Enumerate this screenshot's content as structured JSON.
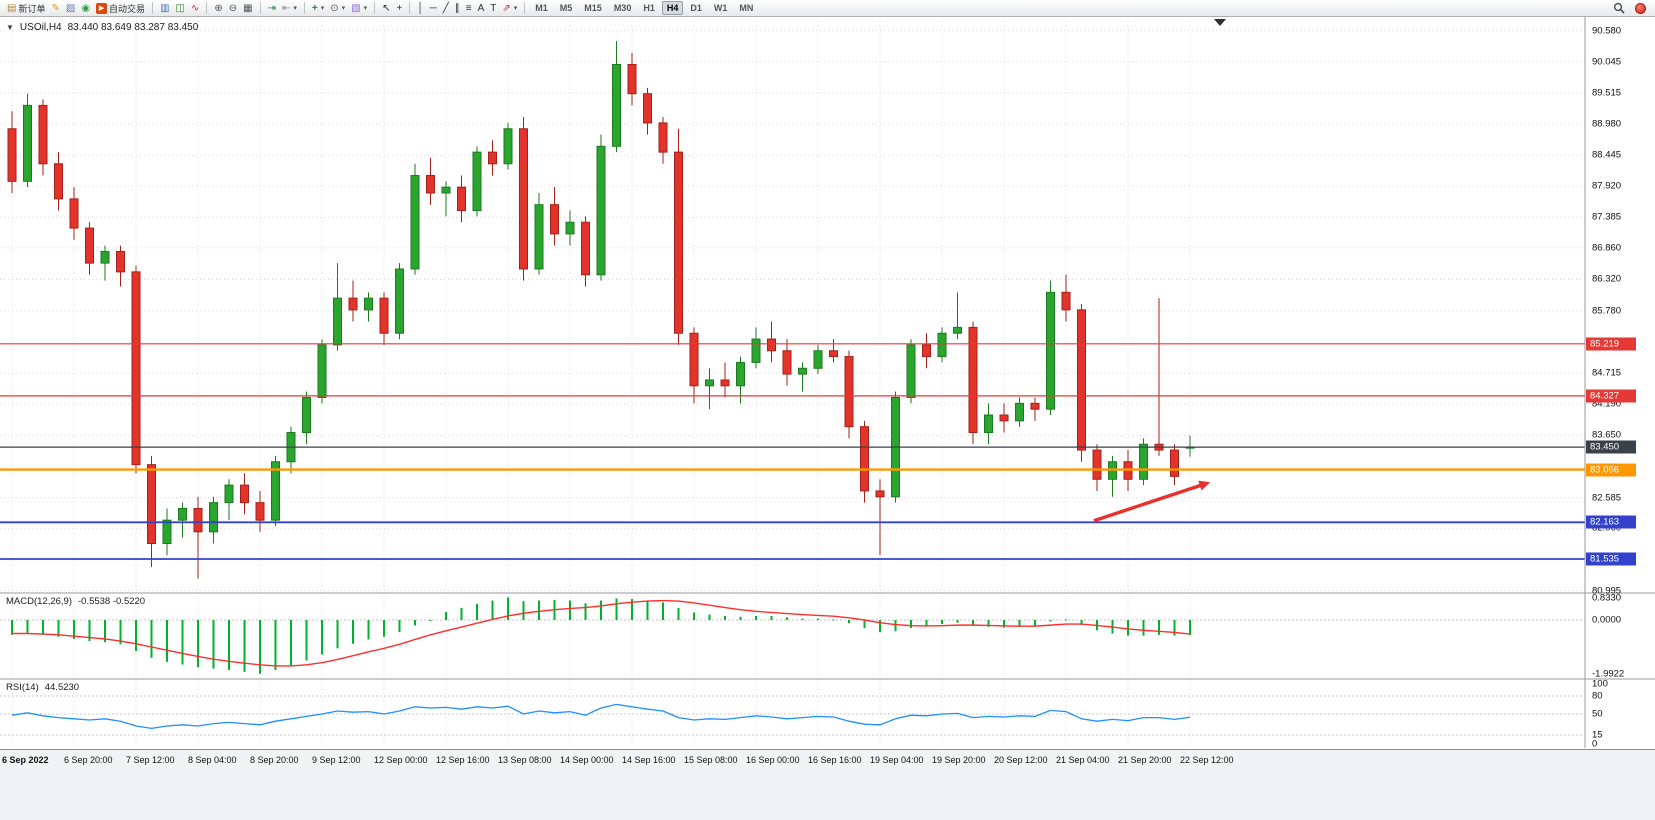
{
  "toolbar": {
    "groups": [
      {
        "items": [
          {
            "name": "new-order-button",
            "icon": "new-order-icon",
            "label": "新订单"
          },
          {
            "name": "metaeditor-button",
            "icon": "metaeditor-icon"
          },
          {
            "name": "print-button",
            "icon": "print-icon"
          },
          {
            "name": "community-button",
            "icon": "community-icon"
          },
          {
            "name": "auto-trading-button",
            "icon": "auto-trading-icon",
            "label": "自动交易"
          }
        ]
      },
      {
        "items": [
          {
            "name": "bars-button",
            "icon": "bars-icon"
          },
          {
            "name": "candlesticks-button",
            "icon": "candlesticks-icon"
          },
          {
            "name": "line-chart-button",
            "icon": "line-chart-icon"
          }
        ]
      },
      {
        "items": [
          {
            "name": "zoom-in-button",
            "icon": "zoom-in-icon"
          },
          {
            "name": "zoom-out-button",
            "icon": "zoom-out-icon"
          },
          {
            "name": "tile-windows-button",
            "icon": "tile-windows-icon"
          }
        ]
      },
      {
        "items": [
          {
            "name": "auto-scroll-button",
            "icon": "auto-scroll-icon"
          },
          {
            "name": "chart-shift-button",
            "icon": "chart-shift-icon",
            "caret": true
          }
        ]
      },
      {
        "items": [
          {
            "name": "indicators-button",
            "icon": "indicators-icon",
            "caret": true
          },
          {
            "name": "periods-button",
            "icon": "periods-icon",
            "caret": true
          },
          {
            "name": "templates-button",
            "icon": "templates-icon",
            "caret": true
          }
        ]
      },
      {
        "items": [
          {
            "name": "cursor-button",
            "icon": "cursor-icon"
          },
          {
            "name": "crosshair-button",
            "icon": "crosshair-icon"
          }
        ]
      },
      {
        "items": [
          {
            "name": "vertical-line-button",
            "icon": "vertical-line-icon"
          },
          {
            "name": "horizontal-line-button",
            "icon": "horizontal-line-icon"
          },
          {
            "name": "trendline-button",
            "icon": "trendline-icon"
          },
          {
            "name": "equidistant-channel-button",
            "icon": "equidistant-channel-icon"
          },
          {
            "name": "fibonacci-button",
            "icon": "fibonacci-icon"
          },
          {
            "name": "text-button",
            "icon": "text-icon"
          },
          {
            "name": "text-label-button",
            "icon": "text-label-icon"
          },
          {
            "name": "arrows-button",
            "icon": "arrows-icon",
            "caret": true
          }
        ]
      },
      {
        "type": "timeframes"
      }
    ],
    "timeframes": [
      "M1",
      "M5",
      "M15",
      "M30",
      "H1",
      "H4",
      "D1",
      "W1",
      "MN"
    ],
    "active_timeframe": "H4"
  },
  "chart": {
    "title": "USOil,H4",
    "ohlc": "83.440 83.649 83.287 83.450"
  },
  "chart_data": {
    "type": "candlestick",
    "symbol": "USOil",
    "timeframe": "H4",
    "current_bar": {
      "open": 83.44,
      "high": 83.649,
      "low": 83.287,
      "close": 83.45
    },
    "y_range": [
      80.94,
      90.83
    ],
    "price_axis": {
      "visible_ticks": [
        "90.580",
        "90.045",
        "89.515",
        "88.980",
        "88.445",
        "87.920",
        "87.385",
        "86.860",
        "86.320",
        "85.780",
        "84.715",
        "84.190",
        "83.650",
        "82.585",
        "82.060",
        "80.995"
      ]
    },
    "candles": [
      [
        88.9,
        89.2,
        87.8,
        88.0
      ],
      [
        88.0,
        89.5,
        87.9,
        89.3
      ],
      [
        89.3,
        89.4,
        88.1,
        88.3
      ],
      [
        88.3,
        88.5,
        87.5,
        87.7
      ],
      [
        87.7,
        87.9,
        87.0,
        87.2
      ],
      [
        87.2,
        87.3,
        86.4,
        86.6
      ],
      [
        86.6,
        86.9,
        86.3,
        86.8
      ],
      [
        86.8,
        86.9,
        86.2,
        86.45
      ],
      [
        86.45,
        86.55,
        83.0,
        83.15
      ],
      [
        83.15,
        83.3,
        81.4,
        81.8
      ],
      [
        81.8,
        82.4,
        81.6,
        82.2
      ],
      [
        82.2,
        82.5,
        81.9,
        82.4
      ],
      [
        82.4,
        82.6,
        81.2,
        82.0
      ],
      [
        82.0,
        82.6,
        81.8,
        82.5
      ],
      [
        82.5,
        82.9,
        82.2,
        82.8
      ],
      [
        82.8,
        83.0,
        82.3,
        82.5
      ],
      [
        82.5,
        82.7,
        82.0,
        82.2
      ],
      [
        82.2,
        83.3,
        82.1,
        83.2
      ],
      [
        83.2,
        83.8,
        83.0,
        83.7
      ],
      [
        83.7,
        84.4,
        83.5,
        84.3
      ],
      [
        84.3,
        85.3,
        84.2,
        85.2
      ],
      [
        85.2,
        86.6,
        85.1,
        86.0
      ],
      [
        86.0,
        86.3,
        85.6,
        85.8
      ],
      [
        85.8,
        86.1,
        85.6,
        86.0
      ],
      [
        86.0,
        86.1,
        85.2,
        85.4
      ],
      [
        85.4,
        86.6,
        85.3,
        86.5
      ],
      [
        86.5,
        88.3,
        86.4,
        88.1
      ],
      [
        88.1,
        88.4,
        87.6,
        87.8
      ],
      [
        87.8,
        88.0,
        87.4,
        87.9
      ],
      [
        87.9,
        88.1,
        87.3,
        87.5
      ],
      [
        87.5,
        88.6,
        87.4,
        88.5
      ],
      [
        88.5,
        88.7,
        88.1,
        88.3
      ],
      [
        88.3,
        89.0,
        88.2,
        88.9
      ],
      [
        88.9,
        89.1,
        86.3,
        86.5
      ],
      [
        86.5,
        87.8,
        86.4,
        87.6
      ],
      [
        87.6,
        87.9,
        86.9,
        87.1
      ],
      [
        87.1,
        87.5,
        86.9,
        87.3
      ],
      [
        87.3,
        87.4,
        86.2,
        86.4
      ],
      [
        86.4,
        88.8,
        86.3,
        88.6
      ],
      [
        88.6,
        90.4,
        88.5,
        90.0
      ],
      [
        90.0,
        90.2,
        89.3,
        89.5
      ],
      [
        89.5,
        89.6,
        88.8,
        89.0
      ],
      [
        89.0,
        89.1,
        88.3,
        88.5
      ],
      [
        88.5,
        88.9,
        85.2,
        85.4
      ],
      [
        85.4,
        85.5,
        84.2,
        84.5
      ],
      [
        84.5,
        84.8,
        84.1,
        84.6
      ],
      [
        84.6,
        84.9,
        84.3,
        84.5
      ],
      [
        84.5,
        85.0,
        84.2,
        84.9
      ],
      [
        84.9,
        85.5,
        84.8,
        85.3
      ],
      [
        85.3,
        85.6,
        84.9,
        85.1
      ],
      [
        85.1,
        85.3,
        84.5,
        84.7
      ],
      [
        84.7,
        84.9,
        84.4,
        84.8
      ],
      [
        84.8,
        85.2,
        84.7,
        85.1
      ],
      [
        85.1,
        85.3,
        84.9,
        85.0
      ],
      [
        85.0,
        85.1,
        83.6,
        83.8
      ],
      [
        83.8,
        83.9,
        82.5,
        82.7
      ],
      [
        82.7,
        82.9,
        81.6,
        82.6
      ],
      [
        82.6,
        84.4,
        82.5,
        84.3
      ],
      [
        84.3,
        85.3,
        84.2,
        85.2
      ],
      [
        85.2,
        85.4,
        84.8,
        85.0
      ],
      [
        85.0,
        85.5,
        84.9,
        85.4
      ],
      [
        85.4,
        86.1,
        85.3,
        85.5
      ],
      [
        85.5,
        85.6,
        83.5,
        83.7
      ],
      [
        83.7,
        84.2,
        83.5,
        84.0
      ],
      [
        84.0,
        84.2,
        83.7,
        83.9
      ],
      [
        83.9,
        84.3,
        83.8,
        84.2
      ],
      [
        84.2,
        84.3,
        83.9,
        84.1
      ],
      [
        84.1,
        86.3,
        84.0,
        86.1
      ],
      [
        86.1,
        86.4,
        85.6,
        85.8
      ],
      [
        85.8,
        85.9,
        83.2,
        83.4
      ],
      [
        83.4,
        83.5,
        82.7,
        82.9
      ],
      [
        82.9,
        83.3,
        82.6,
        83.2
      ],
      [
        83.2,
        83.4,
        82.7,
        82.9
      ],
      [
        82.9,
        83.6,
        82.8,
        83.5
      ],
      [
        83.5,
        86.0,
        83.3,
        83.4
      ],
      [
        83.4,
        83.5,
        82.8,
        82.95
      ],
      [
        83.44,
        83.649,
        83.287,
        83.45
      ]
    ],
    "time_labels": [
      {
        "bar": 0,
        "label": "6 Sep 2022"
      },
      {
        "bar": 4,
        "label": "6 Sep 20:00"
      },
      {
        "bar": 8,
        "label": "7 Sep 12:00"
      },
      {
        "bar": 12,
        "label": "8 Sep 04:00"
      },
      {
        "bar": 16,
        "label": "8 Sep 20:00"
      },
      {
        "bar": 20,
        "label": "9 Sep 12:00"
      },
      {
        "bar": 24,
        "label": "12 Sep 00:00"
      },
      {
        "bar": 28,
        "label": "12 Sep 16:00"
      },
      {
        "bar": 32,
        "label": "13 Sep 08:00"
      },
      {
        "bar": 36,
        "label": "14 Sep 00:00"
      },
      {
        "bar": 40,
        "label": "14 Sep 16:00"
      },
      {
        "bar": 44,
        "label": "15 Sep 08:00"
      },
      {
        "bar": 48,
        "label": "16 Sep 00:00"
      },
      {
        "bar": 52,
        "label": "16 Sep 16:00"
      },
      {
        "bar": 56,
        "label": "19 Sep 04:00"
      },
      {
        "bar": 60,
        "label": "19 Sep 20:00"
      },
      {
        "bar": 64,
        "label": "20 Sep 12:00"
      },
      {
        "bar": 68,
        "label": "21 Sep 04:00"
      },
      {
        "bar": 72,
        "label": "21 Sep 20:00"
      },
      {
        "bar": 76,
        "label": "22 Sep 12:00"
      }
    ],
    "price_levels": [
      {
        "name": "resistance-line-85219",
        "price": 85.219,
        "label": "85.219",
        "color": "#e53935",
        "badge_color": "#e53935",
        "width": 1.2
      },
      {
        "name": "resistance-line-84327",
        "price": 84.327,
        "label": "84.327",
        "color": "#e53935",
        "badge_color": "#e53935",
        "width": 1.2
      },
      {
        "name": "current-price-line",
        "price": 83.45,
        "label": "83.450",
        "color": "#3a4148",
        "badge_color": "#3a4148",
        "width": 1.2
      },
      {
        "name": "support-line-83066",
        "price": 83.066,
        "label": "83.066",
        "color": "#ff9800",
        "badge_color": "#ff9800",
        "width": 2.4
      },
      {
        "name": "support-line-82163",
        "price": 82.163,
        "label": "82.163",
        "color": "#3342cc",
        "badge_color": "#3342cc",
        "width": 1.8
      },
      {
        "name": "support-line-81535",
        "price": 81.535,
        "label": "81.535",
        "color": "#3342cc",
        "badge_color": "#3342cc",
        "width": 1.8
      }
    ],
    "macd": {
      "label": "MACD(12,26,9)",
      "values_text": "-0.5538 -0.5220",
      "histogram": [
        -0.55,
        -0.5,
        -0.55,
        -0.62,
        -0.7,
        -0.78,
        -0.82,
        -0.9,
        -1.15,
        -1.4,
        -1.55,
        -1.65,
        -1.75,
        -1.8,
        -1.85,
        -1.92,
        -1.99,
        -1.85,
        -1.7,
        -1.5,
        -1.28,
        -1.05,
        -0.88,
        -0.72,
        -0.62,
        -0.45,
        -0.2,
        -0.02,
        0.3,
        0.45,
        0.6,
        0.72,
        0.833,
        0.7,
        0.72,
        0.74,
        0.72,
        0.62,
        0.72,
        0.8,
        0.78,
        0.72,
        0.65,
        0.45,
        0.28,
        0.2,
        0.15,
        0.12,
        0.15,
        0.15,
        0.1,
        0.05,
        0.05,
        0.02,
        -0.12,
        -0.3,
        -0.45,
        -0.42,
        -0.3,
        -0.22,
        -0.15,
        -0.1,
        -0.18,
        -0.25,
        -0.28,
        -0.26,
        -0.24,
        -0.05,
        0.02,
        -0.18,
        -0.38,
        -0.5,
        -0.58,
        -0.58,
        -0.55,
        -0.58,
        -0.5538
      ],
      "signal": [
        -0.5,
        -0.5,
        -0.52,
        -0.55,
        -0.6,
        -0.65,
        -0.7,
        -0.78,
        -0.88,
        -1.0,
        -1.12,
        -1.24,
        -1.35,
        -1.45,
        -1.53,
        -1.6,
        -1.66,
        -1.7,
        -1.7,
        -1.66,
        -1.58,
        -1.46,
        -1.32,
        -1.18,
        -1.05,
        -0.9,
        -0.72,
        -0.55,
        -0.4,
        -0.26,
        -0.12,
        0.02,
        0.15,
        0.25,
        0.32,
        0.38,
        0.43,
        0.46,
        0.52,
        0.6,
        0.66,
        0.7,
        0.72,
        0.7,
        0.63,
        0.55,
        0.46,
        0.38,
        0.32,
        0.28,
        0.24,
        0.2,
        0.17,
        0.14,
        0.08,
        0.0,
        -0.1,
        -0.17,
        -0.21,
        -0.22,
        -0.21,
        -0.19,
        -0.19,
        -0.2,
        -0.22,
        -0.23,
        -0.23,
        -0.19,
        -0.15,
        -0.15,
        -0.2,
        -0.26,
        -0.33,
        -0.38,
        -0.42,
        -0.46,
        -0.522
      ],
      "axis_labels": [
        {
          "value": 0.833,
          "label": "0.8330"
        },
        {
          "value": 0,
          "label": "0.0000"
        },
        {
          "value": -1.9922,
          "label": "-1.9922"
        }
      ]
    },
    "rsi": {
      "label": "RSI(14)",
      "value_text": "44.5230",
      "levels": [
        80,
        50,
        15
      ],
      "values": [
        48,
        52,
        47,
        44,
        42,
        40,
        42,
        38,
        30,
        26,
        30,
        32,
        30,
        34,
        36,
        34,
        32,
        38,
        42,
        46,
        50,
        55,
        53,
        54,
        50,
        55,
        62,
        60,
        61,
        58,
        62,
        60,
        63,
        50,
        55,
        52,
        54,
        48,
        60,
        66,
        62,
        58,
        55,
        44,
        40,
        42,
        41,
        44,
        47,
        45,
        42,
        44,
        46,
        45,
        38,
        33,
        32,
        42,
        48,
        47,
        50,
        51,
        44,
        46,
        45,
        47,
        46,
        56,
        54,
        42,
        38,
        41,
        39,
        44,
        44,
        41,
        44.52
      ],
      "axis_labels": [
        {
          "value": 100,
          "label": "100"
        },
        {
          "value": 80,
          "label": "80"
        },
        {
          "value": 50,
          "label": "50"
        },
        {
          "value": 15,
          "label": "15"
        },
        {
          "value": 0,
          "label": "0"
        }
      ]
    },
    "annotation_arrow": {
      "from_bar": 69.8,
      "from_price": 82.19,
      "to_bar": 77.3,
      "to_price": 82.85,
      "color": "#e8312a"
    }
  }
}
